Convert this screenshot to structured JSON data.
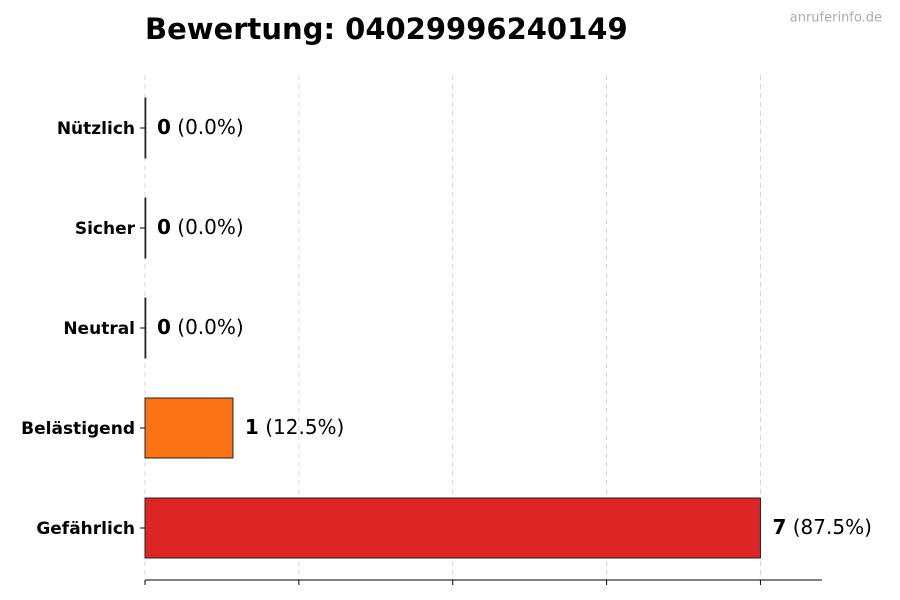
{
  "chart_data": {
    "type": "hbar",
    "title": "Bewertung: 04029996240149",
    "source": "anruferinfo.de",
    "categories": [
      "Nützlich",
      "Sicher",
      "Neutral",
      "Belästigend",
      "Gefährlich"
    ],
    "values": [
      0,
      0,
      0,
      1,
      7
    ],
    "share_labels": [
      "(0.0%)",
      "(0.0%)",
      "(0.0%)",
      "(12.5%)",
      "(87.5%)"
    ],
    "colors": [
      "#22c55e",
      "#3b82f6",
      "#9ca3af",
      "#f97316",
      "#dc2626"
    ],
    "xlim": [
      0,
      7.7
    ],
    "xticks": [
      0,
      1.75,
      3.5,
      5.25,
      7
    ],
    "grid": true
  }
}
